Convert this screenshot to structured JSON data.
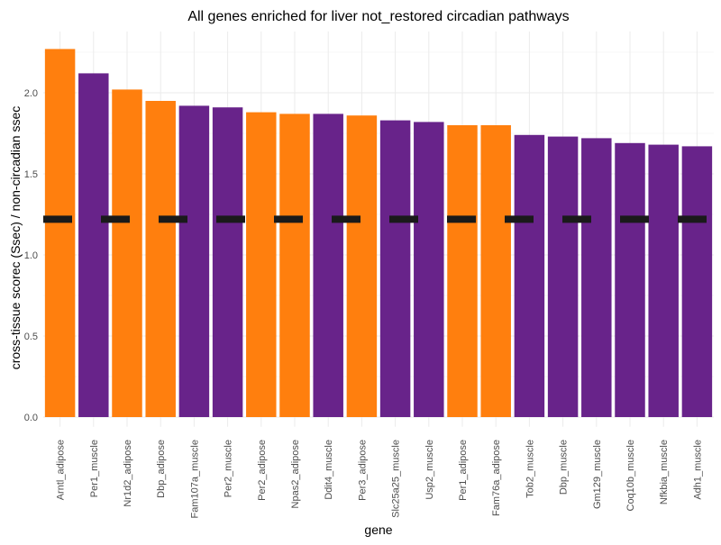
{
  "chart_data": {
    "type": "bar",
    "title": "All genes enriched for liver not_restored circadian pathways",
    "xlabel": "gene",
    "ylabel": "cross-tissue scorec (Ssec) / non-circadian ssec",
    "categories": [
      "Arntl_adipose",
      "Per1_muscle",
      "Nr1d2_adipose",
      "Dbp_adipose",
      "Fam107a_muscle",
      "Per2_muscle",
      "Per2_adipose",
      "Npas2_adipose",
      "Ddit4_muscle",
      "Per3_adipose",
      "Slc25a25_muscle",
      "Usp2_muscle",
      "Per1_adipose",
      "Fam76a_adipose",
      "Tob2_muscle",
      "Dbp_muscle",
      "Gm129_muscle",
      "Coq10b_muscle",
      "Nfkbia_muscle",
      "Adh1_muscle"
    ],
    "values": [
      2.27,
      2.12,
      2.02,
      1.95,
      1.92,
      1.91,
      1.88,
      1.87,
      1.87,
      1.86,
      1.83,
      1.82,
      1.8,
      1.8,
      1.74,
      1.73,
      1.72,
      1.69,
      1.68,
      1.67
    ],
    "tissue": [
      "adipose",
      "muscle",
      "adipose",
      "adipose",
      "muscle",
      "muscle",
      "adipose",
      "adipose",
      "muscle",
      "adipose",
      "muscle",
      "muscle",
      "adipose",
      "adipose",
      "muscle",
      "muscle",
      "muscle",
      "muscle",
      "muscle",
      "muscle"
    ],
    "colors": {
      "adipose": "#ff7f0e",
      "muscle": "#68238a",
      "reference": "#1a1a1a"
    },
    "reference_line_value": 1.22,
    "yticks": [
      "0.0",
      "0.5",
      "1.0",
      "1.5",
      "2.0"
    ],
    "ylim": [
      0,
      2.35
    ],
    "grid": true,
    "legend": "none"
  }
}
